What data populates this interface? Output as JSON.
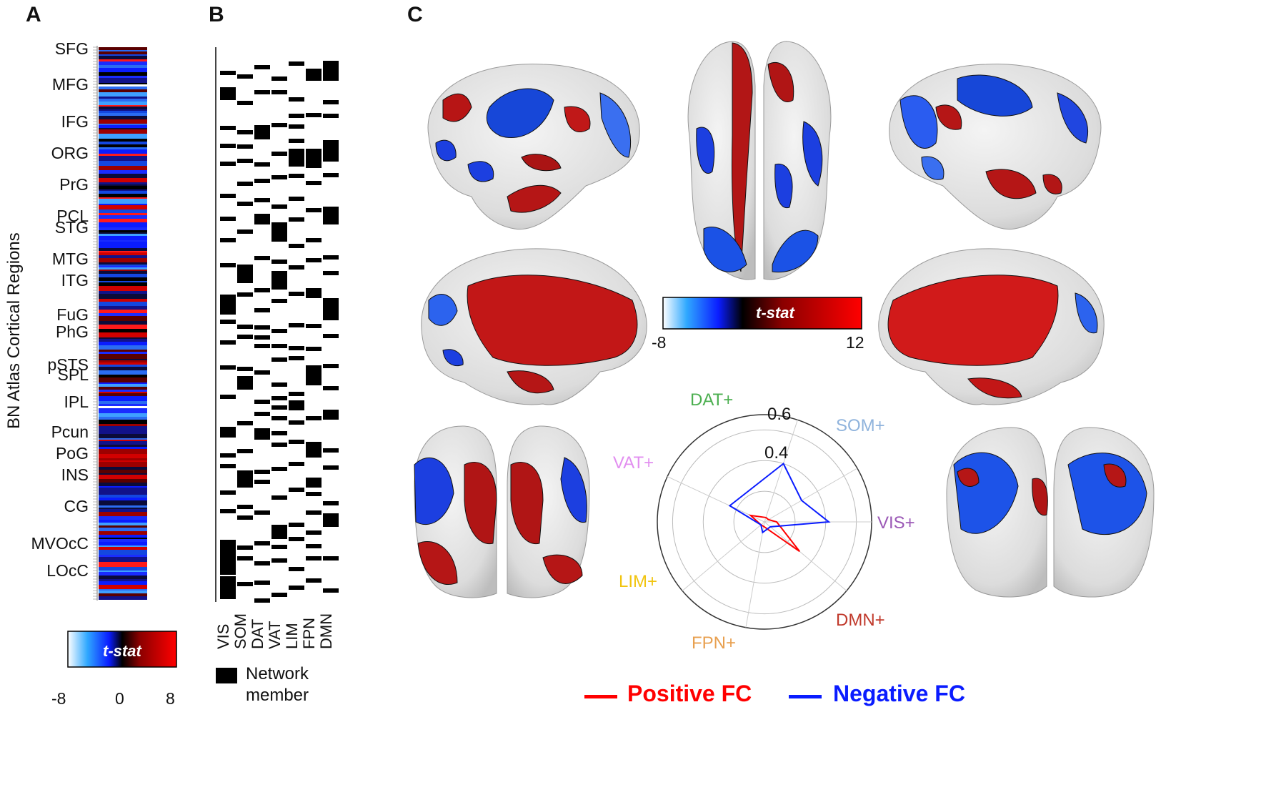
{
  "panels": {
    "a": "A",
    "b": "B",
    "c": "C"
  },
  "panel_a": {
    "ylabel": "BN Atlas Cortical Regions",
    "regions": [
      "SFG",
      "MFG",
      "IFG",
      "ORG",
      "PrG",
      "PCL",
      "STG",
      "MTG",
      "ITG",
      "FuG",
      "PhG",
      "pSTS",
      "SPL",
      "IPL",
      "Pcun",
      "PoG",
      "INS",
      "CG",
      "MVOcC",
      "LOcC"
    ],
    "colorbar": {
      "label": "t-stat",
      "ticks": [
        "-8",
        "0",
        "8"
      ]
    }
  },
  "panel_b": {
    "networks": [
      "VIS",
      "SOM",
      "DAT",
      "VAT",
      "LIM",
      "FPN",
      "DMN"
    ],
    "legend": {
      "line1": "Network",
      "line2": "member"
    }
  },
  "panel_c": {
    "colorbar": {
      "label": "t-stat",
      "min": "-8",
      "max": "12"
    },
    "radar": {
      "rings": [
        "0.6",
        "0.4"
      ],
      "axes": [
        "DAT+",
        "SOM+",
        "VIS+",
        "DMN+",
        "FPN+",
        "LIM+",
        "VAT+"
      ],
      "axis_colors": [
        "#4caf50",
        "#8fb3dc",
        "#9b59b6",
        "#c0392b",
        "#e8a050",
        "#f1c40f",
        "#e28ff0"
      ]
    },
    "legend": {
      "positive": "Positive FC",
      "negative": "Negative FC",
      "positive_color": "#ff0000",
      "negative_color": "#0a1cff"
    }
  },
  "chart_data": {
    "type": "radar",
    "axes": [
      "DAT+",
      "SOM+",
      "VIS+",
      "DMN+",
      "FPN+",
      "LIM+",
      "VAT+"
    ],
    "rings": [
      0.4,
      0.6
    ],
    "series": [
      {
        "name": "Positive FC",
        "values": [
          0.03,
          0.03,
          0.08,
          0.3,
          0.03,
          0.03,
          0.1
        ]
      },
      {
        "name": "Negative FC",
        "values": [
          0.4,
          0.28,
          0.42,
          0.05,
          0.07,
          0.03,
          0.25
        ]
      }
    ]
  }
}
